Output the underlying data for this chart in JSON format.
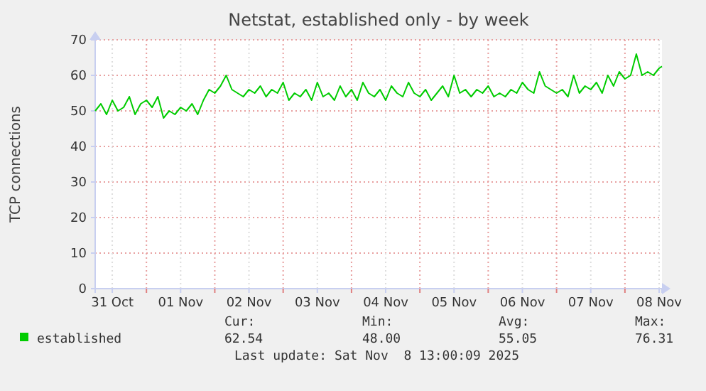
{
  "chart_data": {
    "type": "line",
    "title": "Netstat, established only - by week",
    "ylabel": "TCP connections",
    "x": [
      "2025-10-31T06:00",
      "2025-10-31T08:00",
      "2025-10-31T10:00",
      "2025-10-31T12:00",
      "2025-10-31T14:00",
      "2025-10-31T16:00",
      "2025-10-31T18:00",
      "2025-10-31T20:00",
      "2025-10-31T22:00",
      "2025-11-01T00:00",
      "2025-11-01T02:00",
      "2025-11-01T04:00",
      "2025-11-01T06:00",
      "2025-11-01T08:00",
      "2025-11-01T10:00",
      "2025-11-01T12:00",
      "2025-11-01T14:00",
      "2025-11-01T16:00",
      "2025-11-01T18:00",
      "2025-11-01T20:00",
      "2025-11-01T22:00",
      "2025-11-02T00:00",
      "2025-11-02T02:00",
      "2025-11-02T04:00",
      "2025-11-02T06:00",
      "2025-11-02T08:00",
      "2025-11-02T10:00",
      "2025-11-02T12:00",
      "2025-11-02T14:00",
      "2025-11-02T16:00",
      "2025-11-02T18:00",
      "2025-11-02T20:00",
      "2025-11-02T22:00",
      "2025-11-03T00:00",
      "2025-11-03T02:00",
      "2025-11-03T04:00",
      "2025-11-03T06:00",
      "2025-11-03T08:00",
      "2025-11-03T10:00",
      "2025-11-03T12:00",
      "2025-11-03T14:00",
      "2025-11-03T16:00",
      "2025-11-03T18:00",
      "2025-11-03T20:00",
      "2025-11-03T22:00",
      "2025-11-04T00:00",
      "2025-11-04T02:00",
      "2025-11-04T04:00",
      "2025-11-04T06:00",
      "2025-11-04T08:00",
      "2025-11-04T10:00",
      "2025-11-04T12:00",
      "2025-11-04T14:00",
      "2025-11-04T16:00",
      "2025-11-04T18:00",
      "2025-11-04T20:00",
      "2025-11-04T22:00",
      "2025-11-05T00:00",
      "2025-11-05T02:00",
      "2025-11-05T04:00",
      "2025-11-05T06:00",
      "2025-11-05T08:00",
      "2025-11-05T10:00",
      "2025-11-05T12:00",
      "2025-11-05T14:00",
      "2025-11-05T16:00",
      "2025-11-05T18:00",
      "2025-11-05T20:00",
      "2025-11-05T22:00",
      "2025-11-06T00:00",
      "2025-11-06T02:00",
      "2025-11-06T04:00",
      "2025-11-06T06:00",
      "2025-11-06T08:00",
      "2025-11-06T10:00",
      "2025-11-06T12:00",
      "2025-11-06T14:00",
      "2025-11-06T16:00",
      "2025-11-06T18:00",
      "2025-11-06T20:00",
      "2025-11-06T22:00",
      "2025-11-07T00:00",
      "2025-11-07T02:00",
      "2025-11-07T04:00",
      "2025-11-07T06:00",
      "2025-11-07T08:00",
      "2025-11-07T10:00",
      "2025-11-07T12:00",
      "2025-11-07T14:00",
      "2025-11-07T16:00",
      "2025-11-07T18:00",
      "2025-11-07T20:00",
      "2025-11-07T22:00",
      "2025-11-08T00:00",
      "2025-11-08T02:00",
      "2025-11-08T04:00",
      "2025-11-08T06:00",
      "2025-11-08T08:00",
      "2025-11-08T10:00",
      "2025-11-08T12:00",
      "2025-11-08T13:00"
    ],
    "series": [
      {
        "name": "established",
        "color": "#00cc00",
        "values": [
          50,
          52,
          49,
          53,
          50,
          51,
          54,
          49,
          52,
          53,
          51,
          54,
          48,
          50,
          49,
          51,
          50,
          52,
          49,
          53,
          56,
          55,
          57,
          60,
          56,
          55,
          54,
          56,
          55,
          57,
          54,
          56,
          55,
          58,
          53,
          55,
          54,
          56,
          53,
          58,
          54,
          55,
          53,
          57,
          54,
          56,
          53,
          58,
          55,
          54,
          56,
          53,
          57,
          55,
          54,
          58,
          55,
          54,
          56,
          53,
          55,
          57,
          54,
          60,
          55,
          56,
          54,
          56,
          55,
          57,
          54,
          55,
          54,
          56,
          55,
          58,
          56,
          55,
          61,
          57,
          56,
          55,
          56,
          54,
          60,
          55,
          57,
          56,
          58,
          55,
          60,
          57,
          61,
          59,
          60,
          66,
          60,
          61,
          60,
          62,
          62.54
        ]
      }
    ],
    "xlim": [
      "2025-10-31T06:00",
      "2025-11-08T13:00"
    ],
    "xticks": [
      {
        "value": "2025-10-31T12:00",
        "label": "31 Oct"
      },
      {
        "value": "2025-11-01T00:00",
        "label": null
      },
      {
        "value": "2025-11-01T12:00",
        "label": "01 Nov"
      },
      {
        "value": "2025-11-02T00:00",
        "label": null
      },
      {
        "value": "2025-11-02T12:00",
        "label": "02 Nov"
      },
      {
        "value": "2025-11-03T00:00",
        "label": null
      },
      {
        "value": "2025-11-03T12:00",
        "label": "03 Nov"
      },
      {
        "value": "2025-11-04T00:00",
        "label": null
      },
      {
        "value": "2025-11-04T12:00",
        "label": "04 Nov"
      },
      {
        "value": "2025-11-05T00:00",
        "label": null
      },
      {
        "value": "2025-11-05T12:00",
        "label": "05 Nov"
      },
      {
        "value": "2025-11-06T00:00",
        "label": null
      },
      {
        "value": "2025-11-06T12:00",
        "label": "06 Nov"
      },
      {
        "value": "2025-11-07T00:00",
        "label": null
      },
      {
        "value": "2025-11-07T12:00",
        "label": "07 Nov"
      },
      {
        "value": "2025-11-08T00:00",
        "label": null
      },
      {
        "value": "2025-11-08T12:00",
        "label": "08 Nov"
      }
    ],
    "ylim": [
      0,
      70
    ],
    "yticks": [
      0,
      10,
      20,
      30,
      40,
      50,
      60,
      70
    ],
    "grid": true,
    "legend": "bottom",
    "annotations": [
      "Cur:",
      "Min:",
      "Avg:",
      "Max:",
      "62.54",
      "48.00",
      "55.05",
      "76.31",
      "Last update: Sat Nov  8 13:00:09 2025"
    ]
  }
}
